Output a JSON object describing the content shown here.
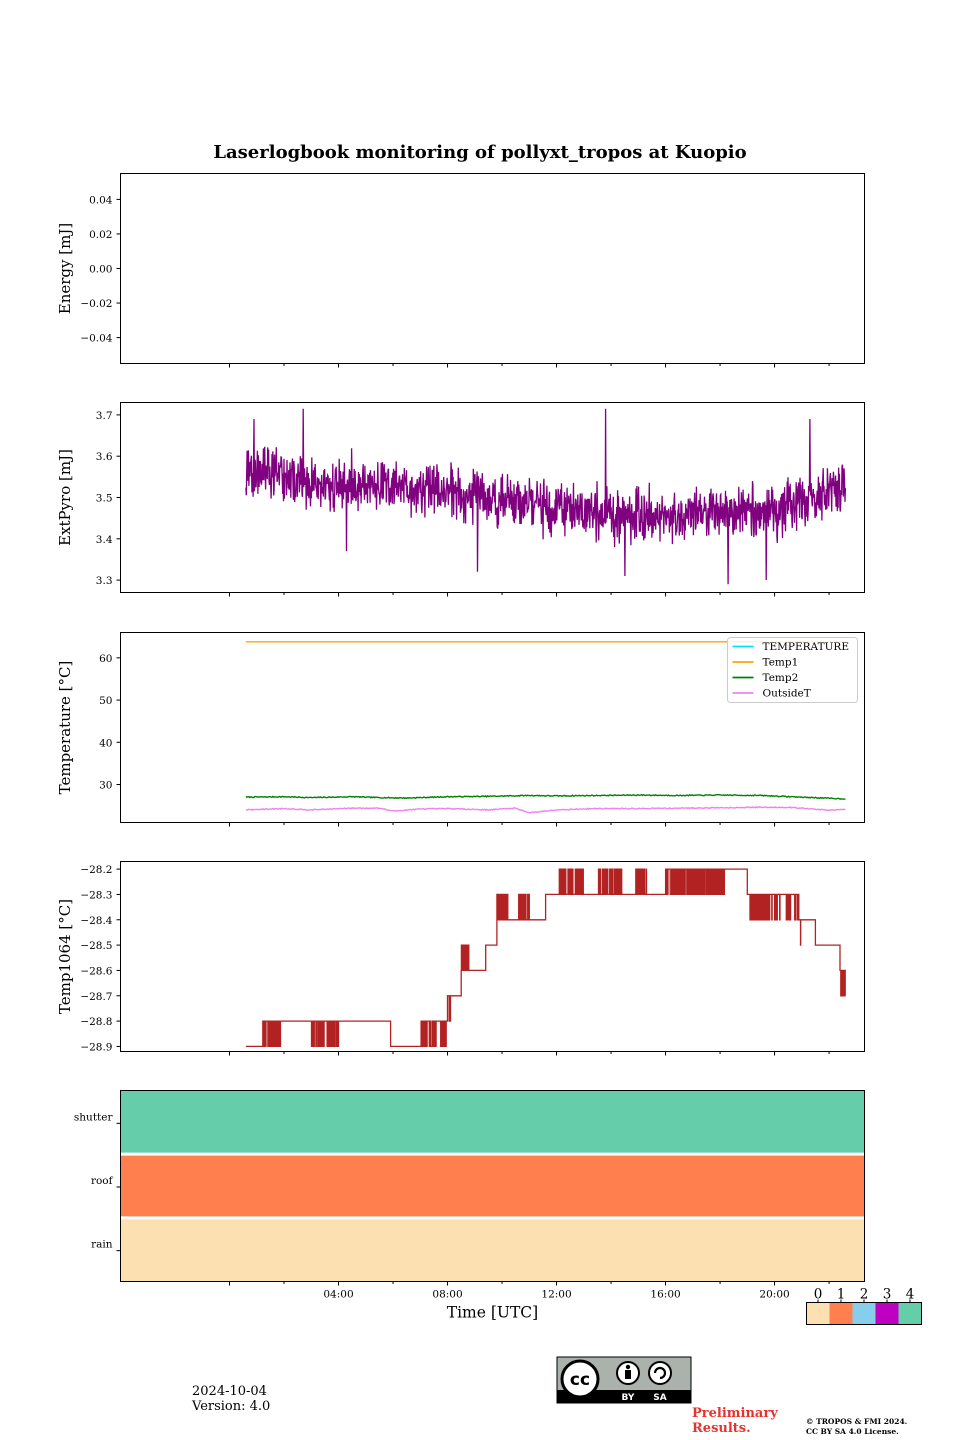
{
  "figure": {
    "title": "Laserlogbook monitoring of pollyxt_tropos at Kuopio",
    "date": "2024-10-04",
    "version": "Version: 4.0",
    "preliminary_line1": "Preliminary",
    "preliminary_line2": "Results.",
    "copyright_line1": "© TROPOS & FMI 2024.",
    "copyright_line2": "CC BY SA 4.0 License.",
    "license_badge": {
      "icon": "cc-by-sa-icon",
      "labels": [
        "BY",
        "SA"
      ]
    }
  },
  "chart_data": [
    {
      "id": "energy",
      "type": "line",
      "ylabel": "Energy [mJ]",
      "ylim": [
        -0.055,
        0.055
      ],
      "yticks": [
        0.04,
        0.02,
        0.0,
        -0.02,
        -0.04
      ],
      "ytick_labels": [
        "0.04",
        "0.02",
        "0.00",
        "−0.02",
        "−0.04"
      ],
      "series": []
    },
    {
      "id": "extpyro",
      "type": "line",
      "ylabel": "ExtPyro [mJ]",
      "ylim": [
        3.27,
        3.73
      ],
      "yticks": [
        3.3,
        3.4,
        3.5,
        3.6,
        3.7
      ],
      "ytick_labels": [
        "3.3",
        "3.4",
        "3.5",
        "3.6",
        "3.7"
      ],
      "series": [
        {
          "color": "#800080",
          "x_hours": [
            0.6,
            1.5,
            2.5,
            3.5,
            4.5,
            5.5,
            6.5,
            7.5,
            8.5,
            9.5,
            10.5,
            11.5,
            12.5,
            13.5,
            14.5,
            15.5,
            16.5,
            17.5,
            18.5,
            19.5,
            20.5,
            21.5,
            22.6
          ],
          "y_mean": [
            3.56,
            3.56,
            3.54,
            3.52,
            3.53,
            3.53,
            3.52,
            3.52,
            3.51,
            3.5,
            3.49,
            3.48,
            3.47,
            3.46,
            3.46,
            3.46,
            3.46,
            3.46,
            3.46,
            3.46,
            3.48,
            3.5,
            3.53
          ],
          "noise_amplitude": 0.05,
          "spikes": [
            [
              0.9,
              3.69
            ],
            [
              2.7,
              3.715
            ],
            [
              4.3,
              3.37
            ],
            [
              9.1,
              3.32
            ],
            [
              13.8,
              3.715
            ],
            [
              14.5,
              3.31
            ],
            [
              18.3,
              3.29
            ],
            [
              19.7,
              3.3
            ],
            [
              21.3,
              3.69
            ]
          ]
        }
      ]
    },
    {
      "id": "temperature",
      "type": "line",
      "ylabel": "Temperature [°C]",
      "ylim": [
        21.0,
        66.0
      ],
      "yticks": [
        30,
        40,
        50,
        60
      ],
      "ytick_labels": [
        "30",
        "40",
        "50",
        "60"
      ],
      "legend": {
        "placement": "upper-right",
        "entries": [
          "TEMPERATURE",
          "Temp1",
          "Temp2",
          "OutsideT"
        ]
      },
      "series": [
        {
          "name": "TEMPERATURE",
          "color": "#00e5ee",
          "points": []
        },
        {
          "name": "Temp1",
          "color": "#ffa500",
          "x_hours": [
            0.6,
            22.6
          ],
          "y": [
            63.8,
            63.8
          ]
        },
        {
          "name": "Temp2",
          "color": "#008000",
          "x_hours": [
            0.6,
            2.0,
            3.0,
            4.5,
            5.5,
            6.5,
            8.0,
            9.5,
            11.0,
            12.0,
            13.5,
            15.0,
            16.5,
            18.0,
            19.5,
            21.0,
            22.6
          ],
          "y": [
            27.0,
            27.1,
            26.9,
            27.1,
            26.9,
            26.8,
            27.1,
            27.2,
            27.4,
            27.3,
            27.4,
            27.5,
            27.4,
            27.5,
            27.4,
            27.0,
            26.6
          ]
        },
        {
          "name": "OutsideT",
          "color": "#ee82ee",
          "x_hours": [
            0.6,
            2.0,
            3.0,
            4.5,
            5.5,
            6.0,
            7.0,
            8.0,
            9.5,
            10.5,
            11.0,
            12.0,
            13.5,
            15.0,
            16.5,
            18.0,
            19.5,
            20.5,
            22.0,
            22.6
          ],
          "y": [
            24.0,
            24.3,
            24.0,
            24.4,
            24.4,
            23.7,
            24.2,
            24.3,
            24.0,
            24.4,
            23.3,
            24.0,
            24.3,
            24.3,
            24.4,
            24.5,
            24.6,
            24.6,
            23.9,
            24.1
          ]
        }
      ]
    },
    {
      "id": "temp1064",
      "type": "line",
      "ylabel": "Temp1064 [°C]",
      "ylim": [
        -28.92,
        -28.17
      ],
      "yticks": [
        -28.2,
        -28.3,
        -28.4,
        -28.5,
        -28.6,
        -28.7,
        -28.8,
        -28.9
      ],
      "ytick_labels": [
        "−28.2",
        "−28.3",
        "−28.4",
        "−28.5",
        "−28.6",
        "−28.7",
        "−28.8",
        "−28.9"
      ],
      "series": [
        {
          "color": "#b22222",
          "steps": [
            [
              0.6,
              -28.9
            ],
            [
              1.2,
              -28.8
            ],
            [
              2.6,
              -28.8
            ],
            [
              3.6,
              -28.8
            ],
            [
              5.9,
              -28.9
            ],
            [
              7.1,
              -28.8
            ],
            [
              8.0,
              -28.7
            ],
            [
              8.5,
              -28.6
            ],
            [
              9.4,
              -28.5
            ],
            [
              9.8,
              -28.4
            ],
            [
              11.6,
              -28.3
            ],
            [
              13.5,
              -28.3
            ],
            [
              15.5,
              -28.3
            ],
            [
              16.0,
              -28.2
            ],
            [
              17.0,
              -28.2
            ],
            [
              18.2,
              -28.2
            ],
            [
              19.0,
              -28.3
            ],
            [
              20.6,
              -28.3
            ],
            [
              20.9,
              -28.4
            ],
            [
              21.5,
              -28.5
            ],
            [
              22.4,
              -28.6
            ],
            [
              22.6,
              -28.7
            ]
          ],
          "flicker_windows": [
            [
              1.2,
              1.9
            ],
            [
              3.0,
              4.0
            ],
            [
              7.0,
              7.6
            ],
            [
              7.7,
              8.1
            ],
            [
              8.5,
              8.8
            ],
            [
              9.8,
              10.2
            ],
            [
              10.6,
              11.0
            ],
            [
              12.1,
              13.0
            ],
            [
              13.5,
              14.4
            ],
            [
              14.9,
              15.3
            ],
            [
              15.5,
              18.2
            ],
            [
              19.1,
              20.2
            ],
            [
              20.4,
              21.0
            ],
            [
              22.4,
              22.7
            ]
          ]
        }
      ]
    },
    {
      "id": "status",
      "type": "heatmap",
      "xlabel": "Time [UTC]",
      "xlim": [
        -4,
        23.3
      ],
      "xticks": [
        4,
        8,
        12,
        16,
        20
      ],
      "xtick_labels": [
        "04:00",
        "08:00",
        "12:00",
        "16:00",
        "20:00"
      ],
      "rows": [
        "shutter",
        "roof",
        "rain"
      ],
      "values": [
        4,
        1,
        0
      ]
    }
  ],
  "colorbar": {
    "ticks": [
      "0",
      "1",
      "2",
      "3",
      "4"
    ],
    "colors": [
      "#fde0b1",
      "#ff7f4e",
      "#87ceeb",
      "#c000c0",
      "#66cdaa"
    ]
  }
}
